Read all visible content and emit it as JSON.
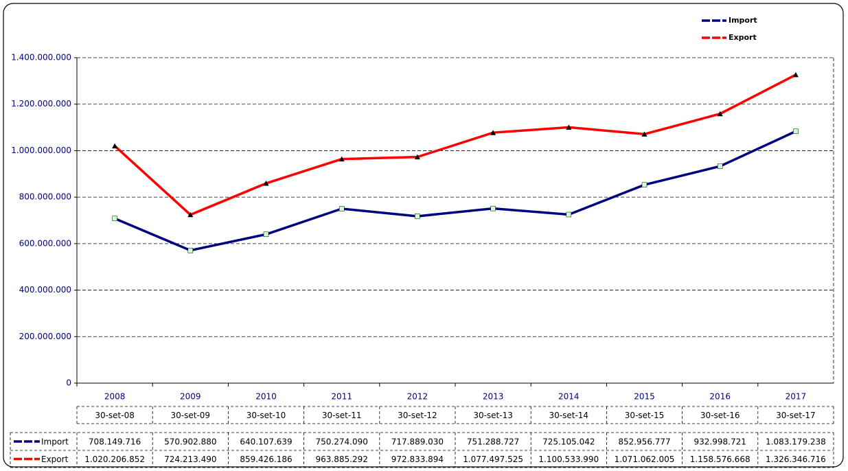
{
  "chart_data": {
    "type": "line",
    "categories": [
      "2008",
      "2009",
      "2010",
      "2011",
      "2012",
      "2013",
      "2014",
      "2015",
      "2016",
      "2017"
    ],
    "table_headers": [
      "30-set-08",
      "30-set-09",
      "30-set-10",
      "30-set-11",
      "30-set-12",
      "30-set-13",
      "30-set-14",
      "30-set-15",
      "30-set-16",
      "30-set-17"
    ],
    "series": [
      {
        "name": "Import",
        "color": "#000080",
        "marker_color": "#ccffcc",
        "values": [
          708149716,
          570902880,
          640107639,
          750274090,
          717889030,
          751288727,
          725105042,
          852956777,
          932998721,
          1083179238
        ],
        "value_labels": [
          "708.149.716",
          "570.902.880",
          "640.107.639",
          "750.274.090",
          "717.889.030",
          "751.288.727",
          "725.105.042",
          "852.956.777",
          "932.998.721",
          "1.083.179.238"
        ]
      },
      {
        "name": "Export",
        "color": "#ff0000",
        "marker_color": "#000000",
        "values": [
          1020206852,
          724213490,
          859426186,
          963885292,
          972833894,
          1077497525,
          1100533990,
          1071062005,
          1158576668,
          1326346716
        ],
        "value_labels": [
          "1.020.206.852",
          "724.213.490",
          "859.426.186",
          "963.885.292",
          "972.833.894",
          "1.077.497.525",
          "1.100.533.990",
          "1.071.062.005",
          "1.158.576.668",
          "1.326.346.716"
        ]
      }
    ],
    "ylim": [
      0,
      1400000000
    ],
    "yticks": [
      0,
      {
        "value": 200000000,
        "label": "200.000.000"
      },
      {
        "value": 400000000,
        "label": "400.000.000"
      },
      {
        "value": 600000000,
        "label": "600.000.000"
      },
      {
        "value": 800000000,
        "label": "800.000.000"
      },
      {
        "value": 1000000000,
        "label": "1.000.000.000"
      },
      {
        "value": 1200000000,
        "label": "1.200.000.000"
      },
      {
        "value": 1400000000,
        "label": "1.400.000.000"
      }
    ],
    "grid": true,
    "legend": "top-right"
  }
}
